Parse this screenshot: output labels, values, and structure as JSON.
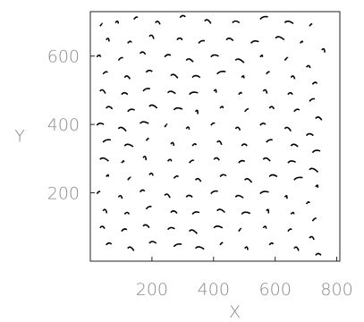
{
  "chart_data": {
    "type": "scatter",
    "title": "",
    "xlabel": "X",
    "ylabel": "Y",
    "xlim": [
      0,
      810
    ],
    "ylim": [
      0,
      730
    ],
    "grid": false,
    "x_ticks": [
      200,
      400,
      600,
      800
    ],
    "y_ticks": [
      200,
      400,
      600
    ],
    "x_tick_labels": [
      "200",
      "400",
      "600",
      "800"
    ],
    "y_tick_labels": [
      "200",
      "400",
      "600"
    ],
    "colors": {
      "marks": "#000000",
      "text": "#8a8a8a",
      "frame": "#222222"
    },
    "series": [
      {
        "values": [
          [
            40,
            690
          ],
          [
            90,
            700
          ],
          [
            150,
            710
          ],
          [
            220,
            700
          ],
          [
            300,
            715
          ],
          [
            380,
            705
          ],
          [
            470,
            700
          ],
          [
            560,
            710
          ],
          [
            640,
            700
          ],
          [
            720,
            690
          ],
          [
            60,
            650
          ],
          [
            130,
            640
          ],
          [
            200,
            660
          ],
          [
            290,
            650
          ],
          [
            360,
            640
          ],
          [
            450,
            650
          ],
          [
            530,
            640
          ],
          [
            610,
            655
          ],
          [
            690,
            640
          ],
          [
            760,
            620
          ],
          [
            30,
            600
          ],
          [
            100,
            590
          ],
          [
            170,
            610
          ],
          [
            250,
            600
          ],
          [
            320,
            590
          ],
          [
            400,
            600
          ],
          [
            480,
            590
          ],
          [
            560,
            600
          ],
          [
            640,
            590
          ],
          [
            710,
            570
          ],
          [
            50,
            550
          ],
          [
            120,
            540
          ],
          [
            190,
            555
          ],
          [
            270,
            545
          ],
          [
            340,
            540
          ],
          [
            420,
            550
          ],
          [
            500,
            540
          ],
          [
            580,
            550
          ],
          [
            660,
            540
          ],
          [
            730,
            520
          ],
          [
            40,
            500
          ],
          [
            110,
            490
          ],
          [
            180,
            500
          ],
          [
            260,
            495
          ],
          [
            330,
            490
          ],
          [
            410,
            500
          ],
          [
            490,
            490
          ],
          [
            570,
            500
          ],
          [
            650,
            490
          ],
          [
            720,
            470
          ],
          [
            60,
            450
          ],
          [
            130,
            440
          ],
          [
            200,
            455
          ],
          [
            280,
            445
          ],
          [
            350,
            440
          ],
          [
            430,
            450
          ],
          [
            510,
            440
          ],
          [
            590,
            450
          ],
          [
            670,
            440
          ],
          [
            740,
            420
          ],
          [
            30,
            400
          ],
          [
            100,
            390
          ],
          [
            170,
            405
          ],
          [
            250,
            395
          ],
          [
            320,
            390
          ],
          [
            400,
            400
          ],
          [
            480,
            390
          ],
          [
            560,
            400
          ],
          [
            640,
            390
          ],
          [
            710,
            370
          ],
          [
            50,
            350
          ],
          [
            120,
            340
          ],
          [
            190,
            355
          ],
          [
            270,
            345
          ],
          [
            340,
            340
          ],
          [
            420,
            350
          ],
          [
            500,
            340
          ],
          [
            580,
            350
          ],
          [
            660,
            340
          ],
          [
            730,
            320
          ],
          [
            40,
            300
          ],
          [
            110,
            290
          ],
          [
            180,
            305
          ],
          [
            260,
            295
          ],
          [
            330,
            290
          ],
          [
            410,
            300
          ],
          [
            490,
            290
          ],
          [
            570,
            300
          ],
          [
            650,
            290
          ],
          [
            720,
            270
          ],
          [
            60,
            250
          ],
          [
            130,
            240
          ],
          [
            200,
            255
          ],
          [
            280,
            245
          ],
          [
            350,
            240
          ],
          [
            430,
            250
          ],
          [
            510,
            240
          ],
          [
            590,
            250
          ],
          [
            670,
            240
          ],
          [
            740,
            220
          ],
          [
            30,
            200
          ],
          [
            100,
            190
          ],
          [
            170,
            205
          ],
          [
            250,
            195
          ],
          [
            320,
            190
          ],
          [
            400,
            200
          ],
          [
            480,
            190
          ],
          [
            560,
            200
          ],
          [
            640,
            190
          ],
          [
            710,
            170
          ],
          [
            50,
            150
          ],
          [
            120,
            140
          ],
          [
            190,
            155
          ],
          [
            270,
            145
          ],
          [
            340,
            140
          ],
          [
            420,
            150
          ],
          [
            500,
            140
          ],
          [
            580,
            150
          ],
          [
            660,
            140
          ],
          [
            730,
            120
          ],
          [
            40,
            100
          ],
          [
            110,
            90
          ],
          [
            180,
            105
          ],
          [
            260,
            95
          ],
          [
            330,
            90
          ],
          [
            410,
            100
          ],
          [
            490,
            90
          ],
          [
            570,
            100
          ],
          [
            650,
            90
          ],
          [
            720,
            70
          ],
          [
            60,
            50
          ],
          [
            130,
            40
          ],
          [
            200,
            55
          ],
          [
            280,
            45
          ],
          [
            350,
            40
          ],
          [
            430,
            50
          ],
          [
            510,
            40
          ],
          [
            590,
            50
          ],
          [
            670,
            40
          ],
          [
            740,
            20
          ]
        ]
      }
    ]
  }
}
